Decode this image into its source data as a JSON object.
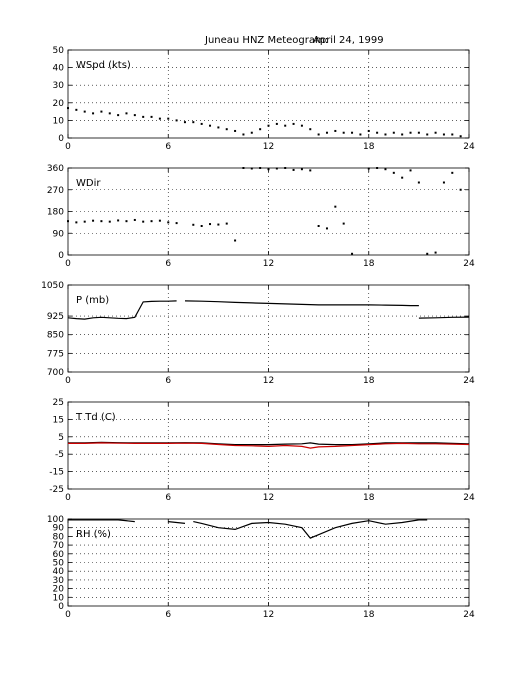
{
  "figure": {
    "title_station": "Juneau HNZ Meteogram:",
    "title_date": "April 24, 1999"
  },
  "chart_data": [
    {
      "type": "scatter",
      "panel_label": "WSpd (kts)",
      "x": [
        0,
        0.5,
        1,
        1.5,
        2,
        2.5,
        3,
        3.5,
        4,
        4.5,
        5,
        5.5,
        6,
        6.5,
        7,
        7.5,
        8,
        8.5,
        9,
        9.5,
        10,
        10.5,
        11,
        11.5,
        12,
        12.5,
        13,
        13.5,
        14,
        14.5,
        15,
        15.5,
        16,
        16.5,
        17,
        17.5,
        18,
        18.5,
        19,
        19.5,
        20,
        20.5,
        21,
        21.5,
        22,
        22.5,
        23,
        23.5
      ],
      "values": [
        17,
        16,
        15,
        14,
        15,
        14,
        13,
        14,
        13,
        12,
        12,
        11,
        11,
        10,
        9,
        9,
        8,
        7,
        6,
        5,
        4,
        2,
        3,
        5,
        7,
        8,
        7,
        8,
        7,
        5,
        2,
        3,
        4,
        3,
        3,
        2,
        4,
        3,
        2,
        3,
        2,
        3,
        3,
        2,
        3,
        2,
        2,
        1
      ],
      "xlim": [
        0,
        24
      ],
      "ylim": [
        0,
        50
      ],
      "xticks": [
        "0",
        "6",
        "12",
        "18",
        "24"
      ],
      "yticks": [
        "0",
        "10",
        "20",
        "30",
        "40",
        "50"
      ],
      "grid": true
    },
    {
      "type": "scatter",
      "panel_label": "WDir",
      "x": [
        0,
        0.5,
        1,
        1.5,
        2,
        2.5,
        3,
        3.5,
        4,
        4.5,
        5,
        5.5,
        6,
        6.5,
        7.5,
        8,
        8.5,
        9,
        9.5,
        10,
        10.5,
        11,
        11.5,
        12,
        12.5,
        13,
        13.5,
        14,
        14.5,
        15,
        15.5,
        16,
        16.5,
        17,
        18,
        18.5,
        19,
        19.5,
        20,
        20.5,
        21,
        21.5,
        22,
        22.5,
        23,
        23.5
      ],
      "values": [
        140,
        135,
        138,
        142,
        140,
        138,
        143,
        140,
        145,
        138,
        140,
        142,
        135,
        132,
        125,
        120,
        128,
        126,
        130,
        60,
        360,
        358,
        360,
        355,
        358,
        360,
        352,
        355,
        350,
        120,
        110,
        200,
        130,
        5,
        358,
        360,
        355,
        340,
        320,
        350,
        300,
        5,
        10,
        300,
        340,
        270
      ],
      "xlim": [
        0,
        24
      ],
      "ylim": [
        0,
        360
      ],
      "xticks": [
        "0",
        "6",
        "12",
        "18",
        "24"
      ],
      "yticks": [
        "0",
        "90",
        "180",
        "270",
        "360"
      ],
      "grid": true
    },
    {
      "type": "line",
      "panel_label": "P (mb)",
      "x": [
        0,
        0.5,
        1,
        1.5,
        2,
        2.5,
        3,
        3.5,
        4,
        4.5,
        5,
        5.5,
        6,
        6.5,
        null,
        7,
        8,
        9,
        10,
        11,
        12,
        13,
        14,
        15,
        16,
        17,
        18,
        19,
        20,
        20.5,
        21,
        null,
        21,
        22,
        23,
        24
      ],
      "values": [
        918,
        915,
        913,
        918,
        920,
        918,
        916,
        915,
        920,
        982,
        984,
        985,
        985,
        986,
        null,
        986,
        985,
        983,
        980,
        978,
        976,
        974,
        972,
        970,
        970,
        970,
        970,
        969,
        968,
        967,
        967,
        null,
        917,
        918,
        920,
        921
      ],
      "xlim": [
        0,
        24
      ],
      "ylim": [
        700,
        1050
      ],
      "xticks": [
        "0",
        "6",
        "12",
        "18",
        "24"
      ],
      "yticks": [
        "700",
        "775",
        "850",
        "925",
        "1050"
      ],
      "ytick_values": [
        700,
        775,
        850,
        925,
        1050
      ],
      "grid": true
    },
    {
      "type": "line",
      "panel_label": "T Td (C)",
      "series": [
        {
          "color": "#000000",
          "x": [
            0,
            1,
            2,
            3,
            4,
            5,
            6,
            7,
            8,
            9,
            10,
            11,
            12,
            13,
            14,
            14.5,
            15,
            16,
            17,
            18,
            19,
            20,
            21,
            22,
            23,
            24
          ],
          "values": [
            1.5,
            1.5,
            1.8,
            1.6,
            1.5,
            1.5,
            1.5,
            1.6,
            1.5,
            1.0,
            0.5,
            0.5,
            0.5,
            0.8,
            1.0,
            1.5,
            0.8,
            0.5,
            0.5,
            1.0,
            1.5,
            1.5,
            1.5,
            1.5,
            1.2,
            1.0
          ]
        },
        {
          "color": "#cc0000",
          "x": [
            0,
            1,
            2,
            3,
            4,
            5,
            6,
            7,
            8,
            9,
            10,
            11,
            12,
            13,
            14,
            14.5,
            15,
            16,
            17,
            18,
            19,
            20,
            21,
            22,
            23,
            24
          ],
          "values": [
            1.2,
            1.2,
            1.5,
            1.3,
            1.2,
            1.2,
            1.2,
            1.3,
            1.2,
            0.6,
            0.0,
            -0.2,
            -0.5,
            0.0,
            -0.5,
            -1.5,
            -0.8,
            -0.5,
            0.0,
            0.5,
            1.0,
            1.2,
            1.0,
            1.0,
            0.8,
            0.6
          ]
        }
      ],
      "xlim": [
        0,
        24
      ],
      "ylim": [
        -25,
        25
      ],
      "xticks": [
        "0",
        "6",
        "12",
        "18",
        "24"
      ],
      "yticks": [
        "-25",
        "-15",
        "-5",
        "5",
        "15",
        "25"
      ],
      "grid": true
    },
    {
      "type": "line",
      "panel_label": "RH (%)",
      "x": [
        0,
        1,
        2,
        3,
        4,
        null,
        6,
        7,
        null,
        7.5,
        8,
        9,
        10,
        11,
        12,
        13,
        14,
        14.5,
        15,
        16,
        17,
        18,
        19,
        20,
        21,
        21.5
      ],
      "values": [
        99,
        99,
        99,
        99,
        97,
        null,
        97,
        95,
        null,
        97,
        95,
        90,
        88,
        95,
        96,
        94,
        90,
        78,
        82,
        90,
        95,
        98,
        94,
        96,
        99,
        99
      ],
      "xlim": [
        0,
        24
      ],
      "ylim": [
        0,
        100
      ],
      "xticks": [
        "0",
        "6",
        "12",
        "18",
        "24"
      ],
      "yticks": [
        "0",
        "10",
        "20",
        "30",
        "40",
        "50",
        "60",
        "70",
        "80",
        "90",
        "100"
      ],
      "grid": true
    }
  ]
}
